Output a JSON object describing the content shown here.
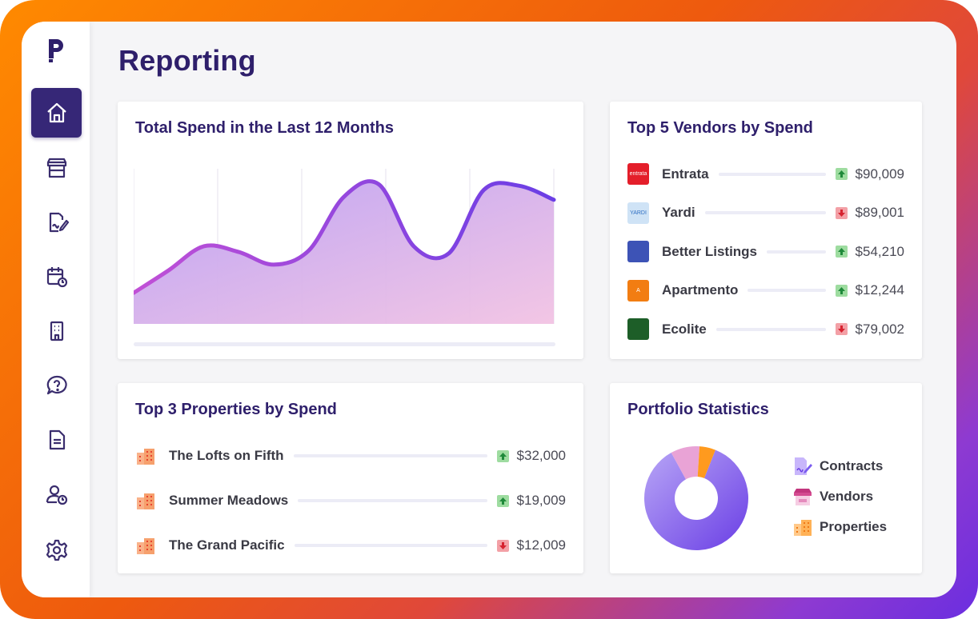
{
  "page_title": "Reporting",
  "sidebar": {
    "items": [
      {
        "icon": "home-icon",
        "active": true
      },
      {
        "icon": "store-icon",
        "active": false
      },
      {
        "icon": "contract-icon",
        "active": false
      },
      {
        "icon": "calendar-clock-icon",
        "active": false
      },
      {
        "icon": "building-icon",
        "active": false
      },
      {
        "icon": "help-chat-icon",
        "active": false
      },
      {
        "icon": "document-icon",
        "active": false
      },
      {
        "icon": "user-clock-icon",
        "active": false
      },
      {
        "icon": "gear-icon",
        "active": false
      }
    ]
  },
  "spend_card": {
    "title": "Total Spend in the Last 12 Months",
    "chart_data": {
      "type": "area",
      "values": [
        22,
        38,
        55,
        51,
        42,
        52,
        90,
        99,
        55,
        50,
        95,
        98,
        88
      ],
      "ylim": [
        0,
        110
      ],
      "grid": "vertical",
      "colors": {
        "line_start": "#c150d6",
        "line_end": "#6a3ee5",
        "fill_start": "#bba0f3",
        "fill_end": "#f2c3e3"
      }
    }
  },
  "vendors_card": {
    "title": "Top 5 Vendors by Spend",
    "items": [
      {
        "name": "Entrata",
        "logo_text": "entrata",
        "logo_color": "#e41e2a",
        "trend": "up",
        "value": "$90,009"
      },
      {
        "name": "Yardi",
        "logo_text": "YARDI",
        "logo_color": "#cfe3f6",
        "trend": "down",
        "value": "$89,001"
      },
      {
        "name": "Better Listings",
        "logo_text": "",
        "logo_color": "#3d53b6",
        "trend": "up",
        "value": "$54,210"
      },
      {
        "name": "Apartmento",
        "logo_text": "A",
        "logo_color": "#f27d12",
        "trend": "up",
        "value": "$12,244"
      },
      {
        "name": "Ecolite",
        "logo_text": "",
        "logo_color": "#1d5e28",
        "trend": "down",
        "value": "$79,002"
      }
    ]
  },
  "properties_card": {
    "title": "Top 3 Properties by Spend",
    "items": [
      {
        "name": "The Lofts on Fifth",
        "trend": "up",
        "value": "$32,000"
      },
      {
        "name": "Summer Meadows",
        "trend": "up",
        "value": "$19,009"
      },
      {
        "name": "The Grand Pacific",
        "trend": "down",
        "value": "$12,009"
      }
    ]
  },
  "portfolio_card": {
    "title": "Portfolio Statistics",
    "chart_data": {
      "type": "pie",
      "slices": [
        {
          "label": "Contracts",
          "value": 86,
          "color": "#7b5cf0"
        },
        {
          "label": "Vendors",
          "value": 9,
          "color": "#e9a3d6"
        },
        {
          "label": "Properties",
          "value": 5,
          "color": "#ff9a1e"
        }
      ]
    },
    "legend": [
      {
        "label": "Contracts",
        "icon": "contract-icon"
      },
      {
        "label": "Vendors",
        "icon": "store-icon"
      },
      {
        "label": "Properties",
        "icon": "building-icon"
      }
    ]
  }
}
